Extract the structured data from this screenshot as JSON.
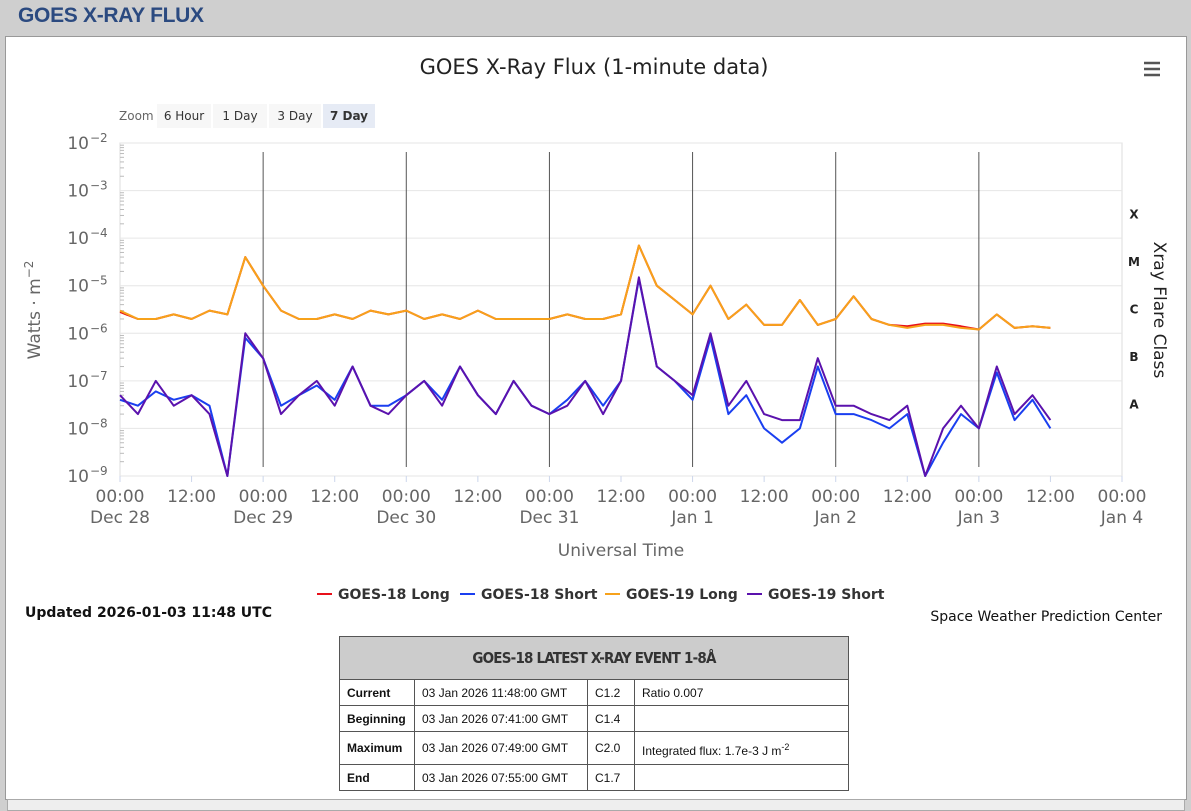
{
  "header": {
    "title": "GOES X-RAY FLUX"
  },
  "zoom": {
    "label": "Zoom",
    "buttons": [
      "6 Hour",
      "1 Day",
      "3 Day",
      "7 Day"
    ],
    "selected": "7 Day"
  },
  "updated": "Updated 2026-01-03 11:48 UTC",
  "credit": "Space Weather Prediction Center",
  "chart_data": {
    "type": "line",
    "title": "GOES X-Ray Flux (1-minute data)",
    "xlabel": "Universal Time",
    "ylabel": "Watts · m",
    "ylabel_sup": "−2",
    "y2label": "Xray Flare Class",
    "log_scale": true,
    "grid": true,
    "legend": "bottom",
    "xlim": [
      "Dec 28 00:00",
      "Jan 4 00:00"
    ],
    "xticks": [
      {
        "value": "Dec 28 00:00",
        "label": "00:00",
        "date": "Dec 28"
      },
      {
        "value": "Dec 28 12:00",
        "label": "12:00"
      },
      {
        "value": "Dec 29 00:00",
        "label": "00:00",
        "date": "Dec 29"
      },
      {
        "value": "Dec 29 12:00",
        "label": "12:00"
      },
      {
        "value": "Dec 30 00:00",
        "label": "00:00",
        "date": "Dec 30"
      },
      {
        "value": "Dec 30 12:00",
        "label": "12:00"
      },
      {
        "value": "Dec 31 00:00",
        "label": "00:00",
        "date": "Dec 31"
      },
      {
        "value": "Dec 31 12:00",
        "label": "12:00"
      },
      {
        "value": "Jan 1 00:00",
        "label": "00:00",
        "date": "Jan 1"
      },
      {
        "value": "Jan 1 12:00",
        "label": "12:00"
      },
      {
        "value": "Jan 2 00:00",
        "label": "00:00",
        "date": "Jan 2"
      },
      {
        "value": "Jan 2 12:00",
        "label": "12:00"
      },
      {
        "value": "Jan 3 00:00",
        "label": "00:00",
        "date": "Jan 3"
      },
      {
        "value": "Jan 3 12:00",
        "label": "12:00"
      },
      {
        "value": "Jan 4 00:00",
        "label": "00:00",
        "date": "Jan 4"
      }
    ],
    "ylim": [
      1e-09,
      0.01
    ],
    "yticks": [
      {
        "value": 1e-09,
        "label": "10",
        "sup": "−9"
      },
      {
        "value": 1e-08,
        "label": "10",
        "sup": "−8"
      },
      {
        "value": 1e-07,
        "label": "10",
        "sup": "−7"
      },
      {
        "value": 1e-06,
        "label": "10",
        "sup": "−6"
      },
      {
        "value": 1e-05,
        "label": "10",
        "sup": "−5"
      },
      {
        "value": 0.0001,
        "label": "10",
        "sup": "−4"
      },
      {
        "value": 0.001,
        "label": "10",
        "sup": "−3"
      },
      {
        "value": 0.01,
        "label": "10",
        "sup": "−2"
      }
    ],
    "flare_classes": [
      {
        "value": 0.0001,
        "label": "X"
      },
      {
        "value": 1e-05,
        "label": "M"
      },
      {
        "value": 1e-06,
        "label": "C"
      },
      {
        "value": 1e-07,
        "label": "B"
      },
      {
        "value": 1e-08,
        "label": "A"
      }
    ],
    "x": [
      "Dec 28 00:00",
      "Dec 28 03:00",
      "Dec 28 06:00",
      "Dec 28 09:00",
      "Dec 28 12:00",
      "Dec 28 15:00",
      "Dec 28 18:00",
      "Dec 28 21:00",
      "Dec 29 00:00",
      "Dec 29 03:00",
      "Dec 29 06:00",
      "Dec 29 09:00",
      "Dec 29 12:00",
      "Dec 29 15:00",
      "Dec 29 18:00",
      "Dec 29 21:00",
      "Dec 30 00:00",
      "Dec 30 03:00",
      "Dec 30 06:00",
      "Dec 30 09:00",
      "Dec 30 12:00",
      "Dec 30 15:00",
      "Dec 30 18:00",
      "Dec 30 21:00",
      "Dec 31 00:00",
      "Dec 31 03:00",
      "Dec 31 06:00",
      "Dec 31 09:00",
      "Dec 31 12:00",
      "Dec 31 15:00",
      "Dec 31 18:00",
      "Dec 31 21:00",
      "Jan 1 00:00",
      "Jan 1 03:00",
      "Jan 1 06:00",
      "Jan 1 09:00",
      "Jan 1 12:00",
      "Jan 1 15:00",
      "Jan 1 18:00",
      "Jan 1 21:00",
      "Jan 2 00:00",
      "Jan 2 03:00",
      "Jan 2 06:00",
      "Jan 2 09:00",
      "Jan 2 12:00",
      "Jan 2 15:00",
      "Jan 2 18:00",
      "Jan 2 21:00",
      "Jan 3 00:00",
      "Jan 3 03:00",
      "Jan 3 06:00",
      "Jan 3 09:00",
      "Jan 3 12:00"
    ],
    "series": [
      {
        "name": "GOES-18 Long",
        "color": "#e8101a",
        "values": [
          2.8e-06,
          2e-06,
          2e-06,
          2.5e-06,
          2e-06,
          3e-06,
          2.5e-06,
          4e-05,
          1e-05,
          3e-06,
          2e-06,
          2e-06,
          2.5e-06,
          2e-06,
          3e-06,
          2.5e-06,
          3e-06,
          2e-06,
          2.5e-06,
          2e-06,
          3e-06,
          2e-06,
          2e-06,
          2e-06,
          2e-06,
          2.5e-06,
          2e-06,
          2e-06,
          2.5e-06,
          7e-05,
          1e-05,
          5e-06,
          2.5e-06,
          1e-05,
          2e-06,
          4e-06,
          1.5e-06,
          1.5e-06,
          5e-06,
          1.5e-06,
          2e-06,
          6e-06,
          2e-06,
          1.5e-06,
          1.4e-06,
          1.6e-06,
          1.6e-06,
          1.4e-06,
          1.2e-06,
          2.5e-06,
          1.3e-06,
          1.4e-06,
          1.3e-06
        ]
      },
      {
        "name": "GOES-18 Short",
        "color": "#1a3ff0",
        "values": [
          4e-08,
          3e-08,
          6e-08,
          4e-08,
          5e-08,
          3e-08,
          1e-09,
          8e-07,
          3e-07,
          3e-08,
          5e-08,
          8e-08,
          4e-08,
          2e-07,
          3e-08,
          3e-08,
          5e-08,
          1e-07,
          4e-08,
          2e-07,
          5e-08,
          2e-08,
          1e-07,
          3e-08,
          2e-08,
          4e-08,
          1e-07,
          3e-08,
          1e-07,
          1.4e-05,
          2e-07,
          1e-07,
          4e-08,
          8e-07,
          2e-08,
          5e-08,
          1e-08,
          5e-09,
          1e-08,
          2e-07,
          2e-08,
          2e-08,
          1.5e-08,
          1e-08,
          2e-08,
          1e-09,
          5e-09,
          2e-08,
          1e-08,
          1.5e-07,
          1.5e-08,
          4e-08,
          1e-08
        ]
      },
      {
        "name": "GOES-19 Long",
        "color": "#f7a21b",
        "values": [
          3e-06,
          2e-06,
          2e-06,
          2.5e-06,
          2e-06,
          3e-06,
          2.5e-06,
          4e-05,
          1e-05,
          3e-06,
          2e-06,
          2e-06,
          2.5e-06,
          2e-06,
          3e-06,
          2.5e-06,
          3e-06,
          2e-06,
          2.5e-06,
          2e-06,
          3e-06,
          2e-06,
          2e-06,
          2e-06,
          2e-06,
          2.5e-06,
          2e-06,
          2e-06,
          2.5e-06,
          7e-05,
          1e-05,
          5e-06,
          2.5e-06,
          1e-05,
          2e-06,
          4e-06,
          1.5e-06,
          1.5e-06,
          5e-06,
          1.5e-06,
          2e-06,
          6e-06,
          2e-06,
          1.5e-06,
          1.3e-06,
          1.5e-06,
          1.5e-06,
          1.3e-06,
          1.2e-06,
          2.5e-06,
          1.3e-06,
          1.4e-06,
          1.3e-06
        ]
      },
      {
        "name": "GOES-19 Short",
        "color": "#5b12ad",
        "values": [
          5e-08,
          2e-08,
          1e-07,
          3e-08,
          5e-08,
          2e-08,
          1e-09,
          1e-06,
          3e-07,
          2e-08,
          5e-08,
          1e-07,
          3e-08,
          2e-07,
          3e-08,
          2e-08,
          5e-08,
          1e-07,
          3e-08,
          2e-07,
          5e-08,
          2e-08,
          1e-07,
          3e-08,
          2e-08,
          3e-08,
          1e-07,
          2e-08,
          1e-07,
          1.5e-05,
          2e-07,
          1e-07,
          5e-08,
          1e-06,
          3e-08,
          1e-07,
          2e-08,
          1.5e-08,
          1.5e-08,
          3e-07,
          3e-08,
          3e-08,
          2e-08,
          1.5e-08,
          3e-08,
          1e-09,
          1e-08,
          3e-08,
          1e-08,
          2e-07,
          2e-08,
          5e-08,
          1.5e-08
        ]
      }
    ]
  },
  "table": {
    "title": "GOES-18 LATEST X-RAY EVENT 1-8Å",
    "rows": [
      [
        "Current",
        "03 Jan 2026 11:48:00 GMT",
        "C1.2",
        "Ratio 0.007"
      ],
      [
        "Beginning",
        "03 Jan 2026 07:41:00 GMT",
        "C1.4"
      ],
      [
        "Maximum",
        "03 Jan 2026 07:49:00 GMT",
        "C2.0",
        "Integrated flux: 1.7e-3 J m"
      ],
      [
        "End",
        "03 Jan 2026 07:55:00 GMT",
        "C1.7"
      ]
    ],
    "sup": "-2"
  }
}
